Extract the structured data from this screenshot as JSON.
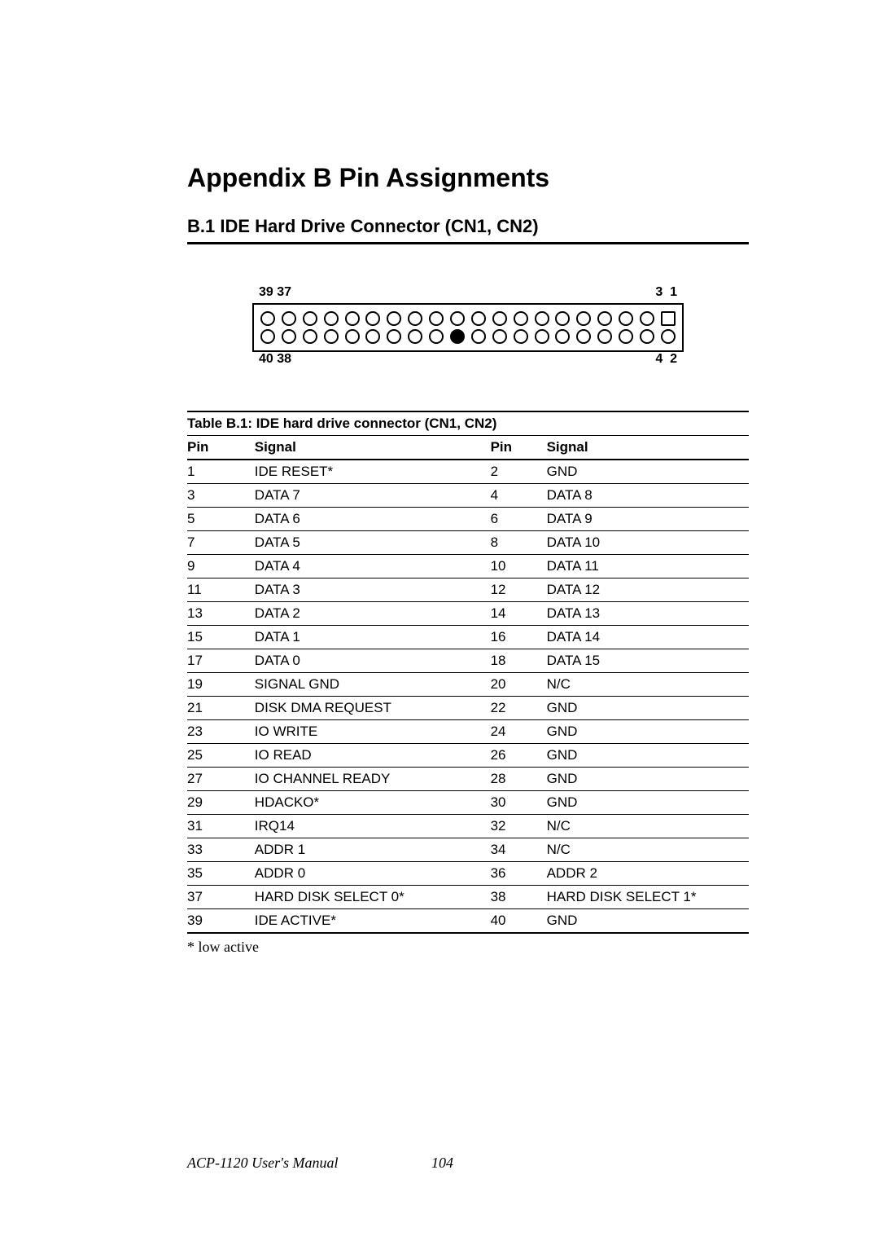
{
  "title": "Appendix B   Pin Assignments",
  "section": "B.1  IDE Hard Drive Connector (CN1, CN2)",
  "connector": {
    "top_left_label": "39 37",
    "top_right_label": "3  1",
    "bottom_left_label": "40 38",
    "bottom_right_label": "4  2",
    "cols": 20,
    "top_row_square_index": 19,
    "bottom_row_filled_index": 9,
    "border_color": "#000000",
    "pin_border_color": "#000000",
    "pin_fill_color": "#000000",
    "background_color": "#ffffff"
  },
  "table": {
    "title": "Table B.1: IDE hard drive connector (CN1, CN2)",
    "headers": [
      "Pin",
      "Signal",
      "Pin",
      "Signal"
    ],
    "rows": [
      [
        "1",
        "IDE RESET*",
        "2",
        "GND"
      ],
      [
        "3",
        "DATA 7",
        "4",
        "DATA 8"
      ],
      [
        "5",
        "DATA 6",
        "6",
        "DATA 9"
      ],
      [
        "7",
        "DATA 5",
        "8",
        "DATA 10"
      ],
      [
        "9",
        "DATA 4",
        "10",
        "DATA 11"
      ],
      [
        "11",
        "DATA 3",
        "12",
        "DATA 12"
      ],
      [
        "13",
        "DATA 2",
        "14",
        "DATA 13"
      ],
      [
        "15",
        "DATA 1",
        "16",
        "DATA 14"
      ],
      [
        "17",
        "DATA 0",
        "18",
        "DATA 15"
      ],
      [
        "19",
        "SIGNAL GND",
        "20",
        "N/C"
      ],
      [
        "21",
        "DISK DMA REQUEST",
        "22",
        "GND"
      ],
      [
        "23",
        "IO WRITE",
        "24",
        "GND"
      ],
      [
        "25",
        "IO READ",
        "26",
        "GND"
      ],
      [
        "27",
        "IO CHANNEL READY",
        "28",
        "GND"
      ],
      [
        "29",
        "HDACKO*",
        "30",
        "GND"
      ],
      [
        "31",
        "IRQ14",
        "32",
        "N/C"
      ],
      [
        "33",
        "ADDR 1",
        "34",
        "N/C"
      ],
      [
        "35",
        "ADDR 0",
        "36",
        "ADDR 2"
      ],
      [
        "37",
        "HARD DISK SELECT 0*",
        "38",
        "HARD DISK SELECT 1*"
      ],
      [
        "39",
        "IDE ACTIVE*",
        "40",
        "GND"
      ]
    ],
    "title_fontsize": 17,
    "body_fontsize": 17,
    "rule_color": "#000000"
  },
  "footnote": "* low active",
  "footer": {
    "manual": "ACP-1120 User's Manual",
    "page": "104"
  },
  "colors": {
    "text": "#000000",
    "background": "#ffffff"
  }
}
